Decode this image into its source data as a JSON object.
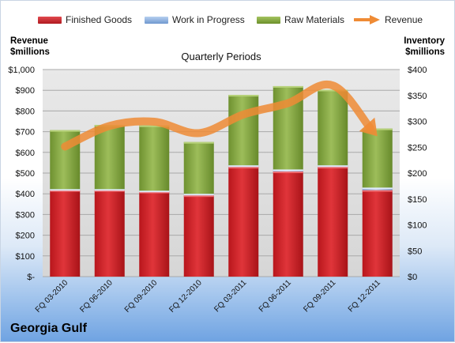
{
  "chart_data": {
    "type": "bar",
    "stacked": true,
    "title": "Quarterly Periods",
    "company": "Georgia Gulf",
    "left_axis_title": "Revenue\n$millions",
    "right_axis_title": "Inventory\n$millions",
    "categories": [
      "FQ 03-2010",
      "FQ 06-2010",
      "FQ 09-2010",
      "FQ 12-2010",
      "FQ 03-2011",
      "FQ 06-2011",
      "FQ 09-2011",
      "FQ 12-2011"
    ],
    "series": [
      {
        "name": "Finished Goods",
        "axis": "right",
        "color": "#d3232a",
        "values": [
          167,
          167,
          164,
          157,
          212,
          203,
          212,
          167
        ]
      },
      {
        "name": "Work in Progress",
        "axis": "right",
        "color": "#8fb4e3",
        "values": [
          2,
          2,
          2,
          3,
          3,
          4,
          3,
          5
        ]
      },
      {
        "name": "Raw Materials",
        "axis": "right",
        "color": "#84a83e",
        "values": [
          114,
          124,
          126,
          100,
          136,
          161,
          146,
          114
        ]
      },
      {
        "name": "Revenue",
        "axis": "left",
        "type": "line",
        "color": "#ef8b35",
        "values": [
          628,
          728,
          748,
          693,
          783,
          838,
          923,
          678
        ]
      }
    ],
    "left_axis": {
      "min": 0,
      "max": 1000,
      "step": 100,
      "tick_labels": [
        "$-",
        "$100",
        "$200",
        "$300",
        "$400",
        "$500",
        "$600",
        "$700",
        "$800",
        "$900",
        "$1,000"
      ]
    },
    "right_axis": {
      "min": 0,
      "max": 400,
      "step": 50,
      "tick_labels": [
        "$0",
        "$50",
        "$100",
        "$150",
        "$200",
        "$250",
        "$300",
        "$350",
        "$400"
      ]
    },
    "grid": true,
    "legend_position": "top"
  }
}
